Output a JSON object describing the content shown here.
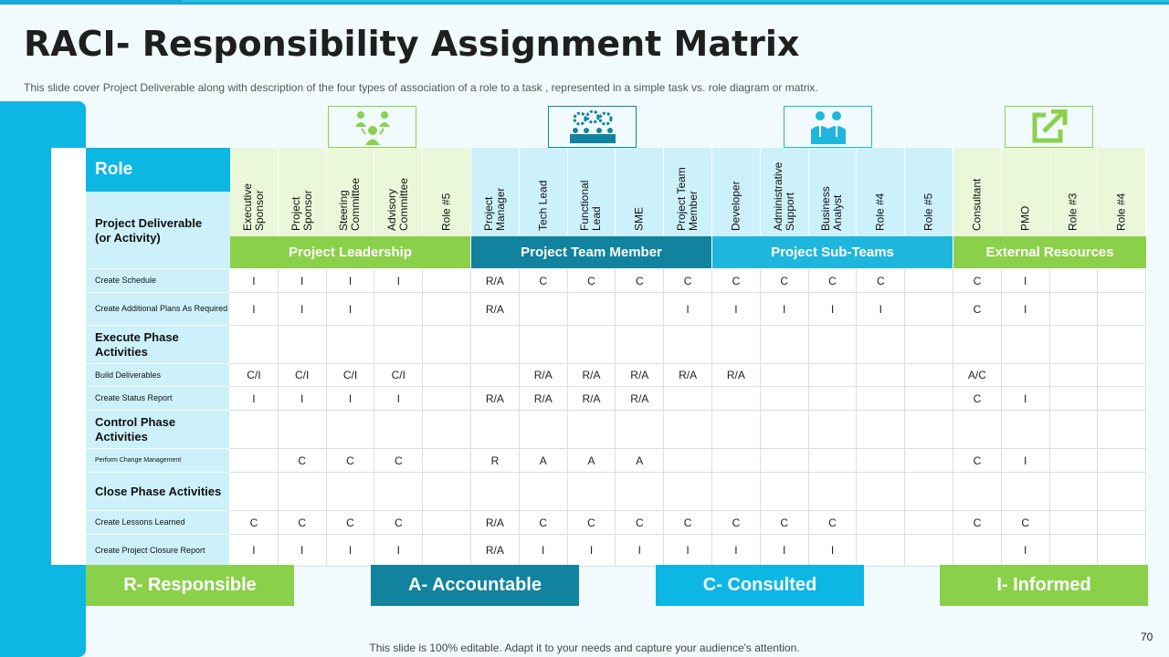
{
  "title": "RACI- Responsibility Assignment Matrix",
  "subtitle": "This slide cover Project Deliverable  along with description of the four types of association of a role to a task , represented  in a simple task vs.  role diagram  or matrix.",
  "role_label": "Role",
  "deliverable_label": "Project Deliverable\n(or Activity)",
  "columns": [
    "Executive\nSponsor",
    "Project\nSponsor",
    "Steering\nCommittee",
    "Advisory\nCommittee",
    "Role #5",
    "Project\nManager",
    "Tech Lead",
    "Functional\nLead",
    "SME",
    "Project Team\nMember",
    "Developer",
    "Administrative\nSupport",
    "Business\nAnalyst",
    "Role #4",
    "Role #5",
    "Consultant",
    "PMO",
    "Role #3",
    "Role #4"
  ],
  "groups": [
    "Project Leadership",
    "Project Team Member",
    "Project Sub-Teams",
    "External Resources"
  ],
  "icons": [
    "group-leader-icon",
    "team-gears-icon",
    "business-people-icon",
    "external-link-icon"
  ],
  "rows": [
    {
      "label": "Create Schedule",
      "type": "small",
      "cells": [
        "I",
        "I",
        "I",
        "I",
        "",
        "R/A",
        "C",
        "C",
        "C",
        "C",
        "C",
        "C",
        "C",
        "C",
        "",
        "C",
        "I",
        "",
        ""
      ]
    },
    {
      "label": "Create Additional Plans As Required",
      "type": "small",
      "cells": [
        "I",
        "I",
        "I",
        "",
        "",
        "R/A",
        "",
        "",
        "",
        "I",
        "I",
        "I",
        "I",
        "I",
        "",
        "C",
        "I",
        "",
        ""
      ]
    },
    {
      "label": "Execute Phase Activities",
      "type": "phase",
      "cells": [
        "",
        "",
        "",
        "",
        "",
        "",
        "",
        "",
        "",
        "",
        "",
        "",
        "",
        "",
        "",
        "",
        "",
        "",
        ""
      ]
    },
    {
      "label": "Build Deliverables",
      "type": "small",
      "cells": [
        "C/I",
        "C/I",
        "C/I",
        "C/I",
        "",
        "",
        "R/A",
        "R/A",
        "R/A",
        "R/A",
        "R/A",
        "",
        "",
        "",
        "",
        "A/C",
        "",
        "",
        ""
      ]
    },
    {
      "label": "Create Status Report",
      "type": "small",
      "cells": [
        "I",
        "I",
        "I",
        "I",
        "",
        "R/A",
        "R/A",
        "R/A",
        "R/A",
        "",
        "",
        "",
        "",
        "",
        "",
        "C",
        "I",
        "",
        ""
      ]
    },
    {
      "label": "Control Phase Activities",
      "type": "phase",
      "cells": [
        "",
        "",
        "",
        "",
        "",
        "",
        "",
        "",
        "",
        "",
        "",
        "",
        "",
        "",
        "",
        "",
        "",
        "",
        ""
      ]
    },
    {
      "label": "Perform Change Management",
      "type": "tiny",
      "cells": [
        "",
        "C",
        "C",
        "C",
        "",
        "R",
        "A",
        "A",
        "A",
        "",
        "",
        "",
        "",
        "",
        "",
        "C",
        "I",
        "",
        ""
      ]
    },
    {
      "label": "Close Phase Activities",
      "type": "phase",
      "cells": [
        "",
        "",
        "",
        "",
        "",
        "",
        "",
        "",
        "",
        "",
        "",
        "",
        "",
        "",
        "",
        "",
        "",
        "",
        ""
      ]
    },
    {
      "label": "Create Lessons Learned",
      "type": "small",
      "cells": [
        "C",
        "C",
        "C",
        "C",
        "",
        "R/A",
        "C",
        "C",
        "C",
        "C",
        "C",
        "C",
        "C",
        "",
        "",
        "C",
        "C",
        "",
        ""
      ]
    },
    {
      "label": "Create Project Closure Report",
      "type": "small",
      "cells": [
        "I",
        "I",
        "I",
        "I",
        "",
        "R/A",
        "I",
        "I",
        "I",
        "I",
        "I",
        "I",
        "I",
        "",
        "",
        "",
        "I",
        "",
        ""
      ]
    }
  ],
  "legend": [
    "R- Responsible",
    "A- Accountable",
    "C- Consulted",
    "I- Informed"
  ],
  "colors": {
    "green": "#8bd04a",
    "teal": "#11839f",
    "sky": "#0db7e4",
    "group_blue": "#1fb6de"
  },
  "footer": "This slide is 100% editable. Adapt it to your needs and capture your audience's attention.",
  "page_number": "70"
}
